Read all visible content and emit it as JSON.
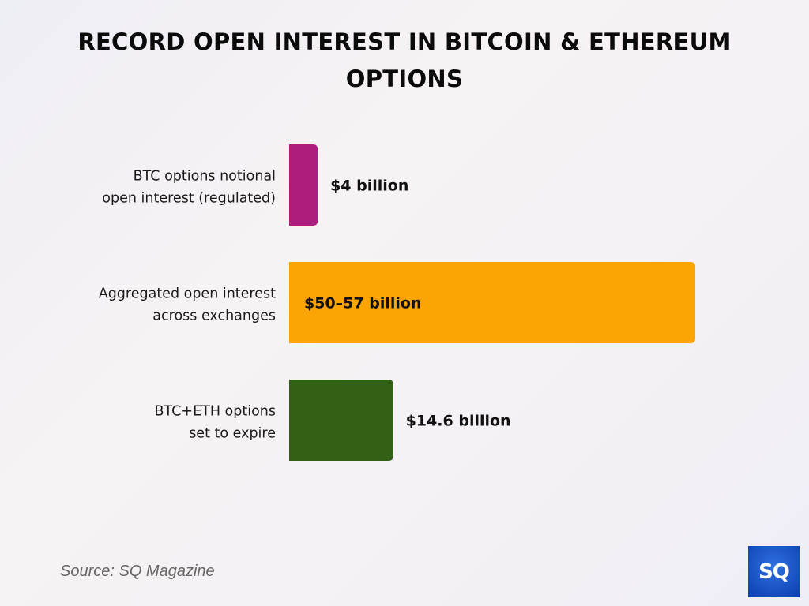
{
  "chart_data": {
    "type": "bar",
    "orientation": "horizontal",
    "title": "RECORD OPEN INTEREST IN BITCOIN & ETHEREUM OPTIONS",
    "categories": [
      [
        "BTC options notional",
        "open interest (regulated)"
      ],
      [
        "Aggregated open interest",
        "across exchanges"
      ],
      [
        "BTC+ETH options",
        "set to expire"
      ]
    ],
    "values": [
      4,
      57,
      14.6
    ],
    "data_labels": [
      "$4 billion",
      "$50–57 billion",
      "$14.6 billion"
    ],
    "colors": [
      "#ad1d7e",
      "#fba404",
      "#326014"
    ],
    "unit": "billion USD",
    "xlim": [
      0,
      57
    ],
    "grid": false,
    "legend": "none"
  },
  "source": "Source: SQ Magazine",
  "logo": "SQ"
}
